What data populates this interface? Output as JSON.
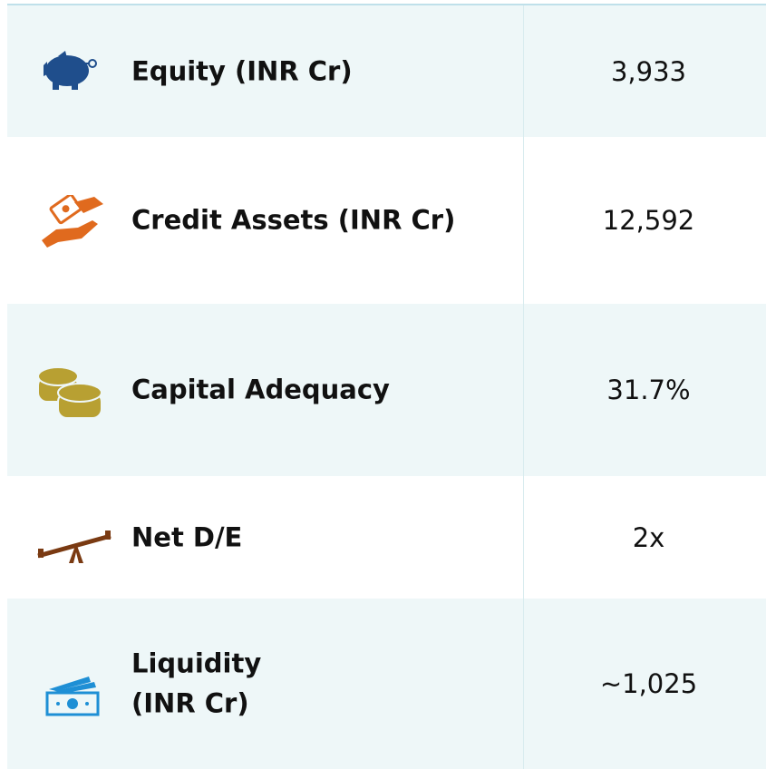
{
  "table": {
    "rows": [
      {
        "label": "Equity (INR Cr)",
        "value": "3,933"
      },
      {
        "label": "Credit Assets (INR Cr)",
        "value": "12,592"
      },
      {
        "label": "Capital Adequacy",
        "value": "31.7%"
      },
      {
        "label": "Net D/E",
        "value": "2x"
      },
      {
        "label": "Liquidity\n(INR Cr)",
        "value": "~1,025"
      }
    ]
  }
}
